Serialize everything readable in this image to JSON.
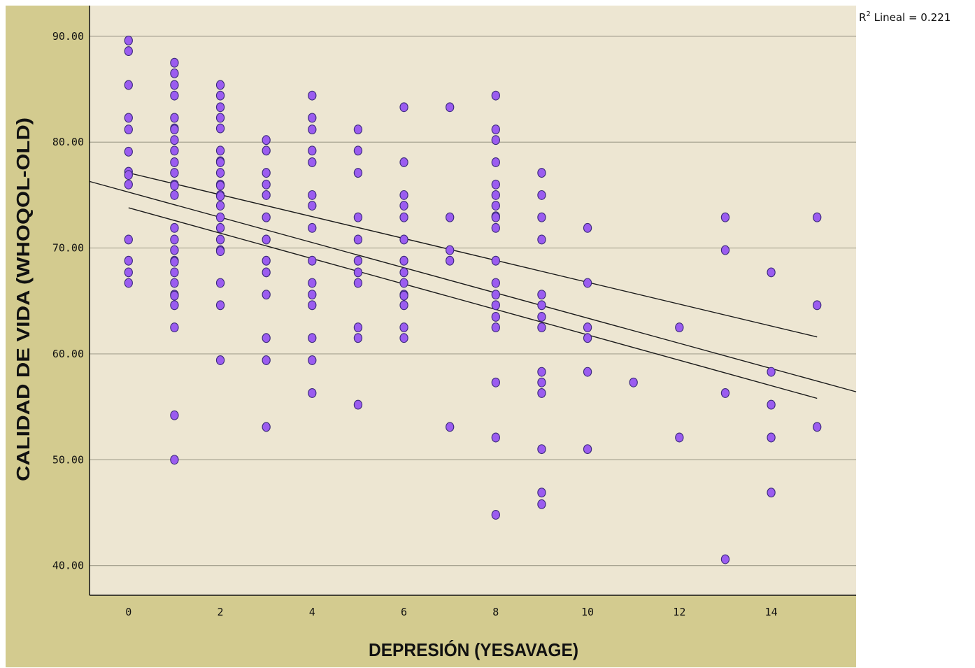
{
  "chart_data": {
    "type": "scatter",
    "xlabel": "DEPRESIÓN (YESAVAGE)",
    "ylabel": "CALIDAD DE VIDA (WHOQOL-OLD)",
    "xlim": [
      -0.85,
      15.85
    ],
    "ylim": [
      37.2,
      92.9
    ],
    "x_ticks": [
      0,
      2,
      4,
      6,
      8,
      10,
      12,
      14
    ],
    "x_tick_labels": [
      "0",
      "2",
      "4",
      "6",
      "8",
      "10",
      "12",
      "14"
    ],
    "y_ticks": [
      40,
      50,
      60,
      70,
      80,
      90
    ],
    "y_tick_labels": [
      "40.00",
      "50.00",
      "60.00",
      "70.00",
      "80.00",
      "90.00"
    ],
    "grid": "horizontal",
    "annotation": {
      "prefix": "R",
      "superscript": "2",
      "text": " Lineal = 0.221"
    },
    "colors": {
      "plot_bg": "#ede6d2",
      "outer_bg": "#d3cb8f",
      "point_fill": "#9b5cf0",
      "point_stroke": "#3b2a7a",
      "grid": "#a7a391",
      "line": "#1a1a1a"
    },
    "fit_line": {
      "slope": -1.19,
      "intercept": 75.28
    },
    "confidence_band": {
      "upper": [
        [
          0,
          77.1
        ],
        [
          15,
          61.6
        ]
      ],
      "lower": [
        [
          0,
          73.8
        ],
        [
          15,
          55.8
        ]
      ]
    },
    "points": [
      [
        0,
        89.6
      ],
      [
        0,
        88.6
      ],
      [
        0,
        85.4
      ],
      [
        0,
        82.3
      ],
      [
        0,
        81.2
      ],
      [
        0,
        79.1
      ],
      [
        0,
        77.2
      ],
      [
        0,
        76.9
      ],
      [
        0,
        76.0
      ],
      [
        0,
        70.8
      ],
      [
        0,
        68.8
      ],
      [
        0,
        67.7
      ],
      [
        0,
        66.7
      ],
      [
        1,
        87.5
      ],
      [
        1,
        86.5
      ],
      [
        1,
        85.4
      ],
      [
        1,
        84.4
      ],
      [
        1,
        82.3
      ],
      [
        1,
        81.3
      ],
      [
        1,
        81.2
      ],
      [
        1,
        80.2
      ],
      [
        1,
        79.2
      ],
      [
        1,
        78.1
      ],
      [
        1,
        77.1
      ],
      [
        1,
        76.0
      ],
      [
        1,
        75.9
      ],
      [
        1,
        75.0
      ],
      [
        1,
        71.9
      ],
      [
        1,
        70.8
      ],
      [
        1,
        69.8
      ],
      [
        1,
        68.8
      ],
      [
        1,
        68.7
      ],
      [
        1,
        67.7
      ],
      [
        1,
        66.7
      ],
      [
        1,
        65.6
      ],
      [
        1,
        65.5
      ],
      [
        1,
        64.6
      ],
      [
        1,
        62.5
      ],
      [
        1,
        54.2
      ],
      [
        1,
        50.0
      ],
      [
        2,
        85.4
      ],
      [
        2,
        84.4
      ],
      [
        2,
        83.3
      ],
      [
        2,
        82.3
      ],
      [
        2,
        81.3
      ],
      [
        2,
        79.2
      ],
      [
        2,
        78.2
      ],
      [
        2,
        78.1
      ],
      [
        2,
        77.1
      ],
      [
        2,
        76.0
      ],
      [
        2,
        75.9
      ],
      [
        2,
        75.0
      ],
      [
        2,
        74.9
      ],
      [
        2,
        74.0
      ],
      [
        2,
        72.9
      ],
      [
        2,
        71.9
      ],
      [
        2,
        70.8
      ],
      [
        2,
        69.8
      ],
      [
        2,
        69.7
      ],
      [
        2,
        66.7
      ],
      [
        2,
        64.6
      ],
      [
        2,
        59.4
      ],
      [
        3,
        80.2
      ],
      [
        3,
        79.2
      ],
      [
        3,
        77.1
      ],
      [
        3,
        76.0
      ],
      [
        3,
        75.0
      ],
      [
        3,
        72.9
      ],
      [
        3,
        70.8
      ],
      [
        3,
        68.8
      ],
      [
        3,
        67.7
      ],
      [
        3,
        65.6
      ],
      [
        3,
        61.5
      ],
      [
        3,
        59.4
      ],
      [
        3,
        53.1
      ],
      [
        4,
        84.4
      ],
      [
        4,
        82.3
      ],
      [
        4,
        81.2
      ],
      [
        4,
        79.2
      ],
      [
        4,
        78.1
      ],
      [
        4,
        75.0
      ],
      [
        4,
        74.0
      ],
      [
        4,
        71.9
      ],
      [
        4,
        68.8
      ],
      [
        4,
        66.7
      ],
      [
        4,
        65.6
      ],
      [
        4,
        64.6
      ],
      [
        4,
        61.5
      ],
      [
        4,
        59.4
      ],
      [
        4,
        56.3
      ],
      [
        5,
        81.2
      ],
      [
        5,
        79.2
      ],
      [
        5,
        77.1
      ],
      [
        5,
        72.9
      ],
      [
        5,
        70.8
      ],
      [
        5,
        68.8
      ],
      [
        5,
        67.7
      ],
      [
        5,
        66.7
      ],
      [
        5,
        62.5
      ],
      [
        5,
        61.5
      ],
      [
        5,
        55.2
      ],
      [
        6,
        83.3
      ],
      [
        6,
        78.1
      ],
      [
        6,
        75.0
      ],
      [
        6,
        74.0
      ],
      [
        6,
        72.9
      ],
      [
        6,
        70.8
      ],
      [
        6,
        68.8
      ],
      [
        6,
        67.7
      ],
      [
        6,
        66.7
      ],
      [
        6,
        65.6
      ],
      [
        6,
        65.5
      ],
      [
        6,
        64.6
      ],
      [
        6,
        62.5
      ],
      [
        6,
        61.5
      ],
      [
        7,
        83.3
      ],
      [
        7,
        72.9
      ],
      [
        7,
        69.8
      ],
      [
        7,
        68.8
      ],
      [
        7,
        53.1
      ],
      [
        8,
        84.4
      ],
      [
        8,
        81.2
      ],
      [
        8,
        80.2
      ],
      [
        8,
        78.1
      ],
      [
        8,
        76.0
      ],
      [
        8,
        75.0
      ],
      [
        8,
        74.0
      ],
      [
        8,
        73.0
      ],
      [
        8,
        72.9
      ],
      [
        8,
        71.9
      ],
      [
        8,
        68.8
      ],
      [
        8,
        66.7
      ],
      [
        8,
        65.6
      ],
      [
        8,
        64.6
      ],
      [
        8,
        63.5
      ],
      [
        8,
        62.5
      ],
      [
        8,
        57.3
      ],
      [
        8,
        52.1
      ],
      [
        8,
        44.8
      ],
      [
        9,
        77.1
      ],
      [
        9,
        75.0
      ],
      [
        9,
        72.9
      ],
      [
        9,
        70.8
      ],
      [
        9,
        65.6
      ],
      [
        9,
        64.6
      ],
      [
        9,
        63.5
      ],
      [
        9,
        62.5
      ],
      [
        9,
        58.3
      ],
      [
        9,
        57.3
      ],
      [
        9,
        56.3
      ],
      [
        9,
        51.0
      ],
      [
        9,
        46.9
      ],
      [
        9,
        45.8
      ],
      [
        10,
        71.9
      ],
      [
        10,
        66.7
      ],
      [
        10,
        62.5
      ],
      [
        10,
        61.5
      ],
      [
        10,
        58.3
      ],
      [
        10,
        51.0
      ],
      [
        11,
        57.3
      ],
      [
        12,
        62.5
      ],
      [
        12,
        52.1
      ],
      [
        13,
        72.9
      ],
      [
        13,
        69.8
      ],
      [
        13,
        56.3
      ],
      [
        13,
        40.6
      ],
      [
        14,
        67.7
      ],
      [
        14,
        58.3
      ],
      [
        14,
        55.2
      ],
      [
        14,
        52.1
      ],
      [
        14,
        46.9
      ],
      [
        15,
        72.9
      ],
      [
        15,
        64.6
      ],
      [
        15,
        53.1
      ]
    ]
  }
}
